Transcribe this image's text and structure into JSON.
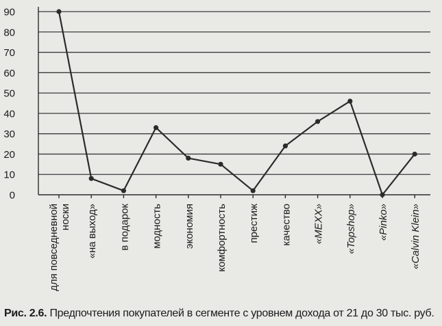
{
  "chart_data": {
    "type": "line",
    "categories": [
      "для повседневной носки",
      "«на выход»",
      "в подарок",
      "модность",
      "экономия",
      "комфортность",
      "престиж",
      "качество",
      "«MEXX»",
      "«Topshop»",
      "«Pinko»",
      "«Calvin Klein»"
    ],
    "series": [
      {
        "values": [
          90,
          8,
          2,
          33,
          18,
          15,
          2,
          24,
          36,
          46,
          0,
          20
        ]
      }
    ],
    "ylim": [
      0,
      90
    ],
    "yticks": [
      0,
      10,
      20,
      30,
      40,
      50,
      60,
      70,
      80,
      90
    ],
    "grid": "horizontal",
    "line_color": "#2b2b2b"
  },
  "caption": {
    "label": "Рис. 2.6.",
    "text": "Предпочтения покупателей в сегменте с уровнем дохода от 21 до 30 тыс. руб."
  }
}
